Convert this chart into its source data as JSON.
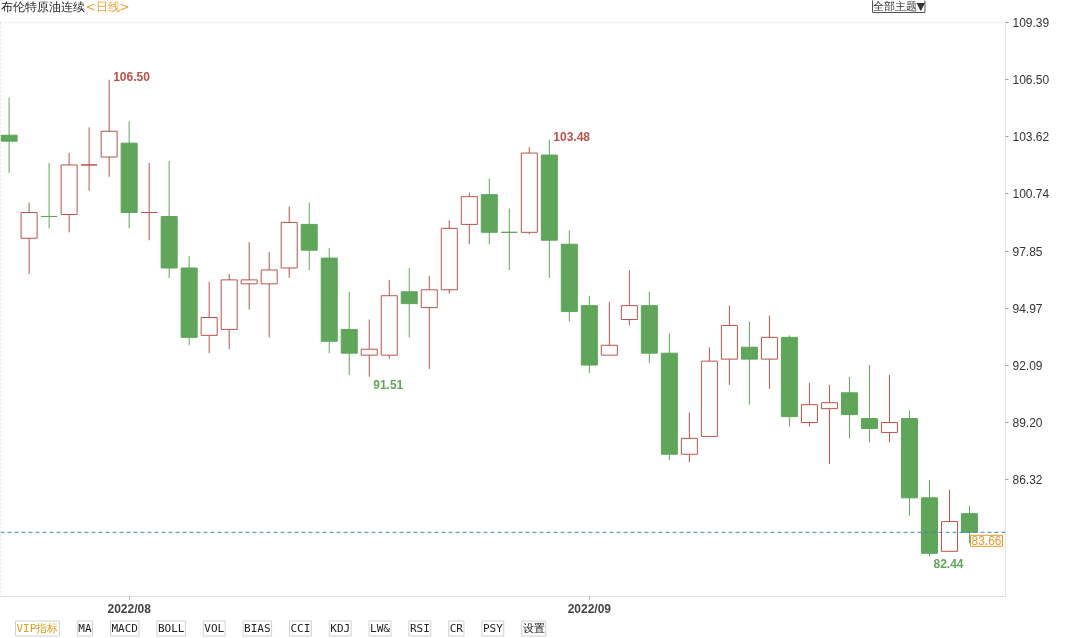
{
  "chart_data": {
    "type": "candlestick",
    "title": "布伦特原油连续",
    "subtitle": "<日线>",
    "categories": [
      null,
      null,
      null,
      null,
      null,
      null,
      "2022/08",
      null,
      null,
      null,
      null,
      null,
      null,
      null,
      null,
      null,
      null,
      null,
      null,
      null,
      null,
      null,
      null,
      null,
      null,
      null,
      null,
      null,
      null,
      "2022/09",
      null,
      null,
      null,
      null,
      null,
      null,
      null,
      null,
      null,
      null,
      null,
      null,
      null,
      null,
      null,
      null,
      null,
      null,
      null
    ],
    "ohlc": [
      [
        103.7,
        105.6,
        101.8,
        103.4
      ],
      [
        98.5,
        100.3,
        96.7,
        99.8
      ],
      [
        99.6,
        102.3,
        99.0,
        99.6
      ],
      [
        99.7,
        102.8,
        98.8,
        102.2
      ],
      [
        102.2,
        104.1,
        100.9,
        102.2
      ],
      [
        102.6,
        106.5,
        101.6,
        103.9
      ],
      [
        103.3,
        104.4,
        99.0,
        99.8
      ],
      [
        99.8,
        102.3,
        98.4,
        99.8
      ],
      [
        99.6,
        102.4,
        96.5,
        97.0
      ],
      [
        97.0,
        97.6,
        93.1,
        93.5
      ],
      [
        93.6,
        96.3,
        92.7,
        94.5
      ],
      [
        93.9,
        96.7,
        92.9,
        96.4
      ],
      [
        96.2,
        98.3,
        94.9,
        96.4
      ],
      [
        96.2,
        97.8,
        93.5,
        96.9
      ],
      [
        97.0,
        100.1,
        96.5,
        99.3
      ],
      [
        99.2,
        100.3,
        96.9,
        97.9
      ],
      [
        97.5,
        98.0,
        92.7,
        93.3
      ],
      [
        93.9,
        95.8,
        91.6,
        92.7
      ],
      [
        92.6,
        94.4,
        91.51,
        92.9
      ],
      [
        92.6,
        96.4,
        92.4,
        95.6
      ],
      [
        95.8,
        97.0,
        93.5,
        95.2
      ],
      [
        95.0,
        96.6,
        91.9,
        95.9
      ],
      [
        95.9,
        99.4,
        95.7,
        99.0
      ],
      [
        99.2,
        100.8,
        98.2,
        100.6
      ],
      [
        100.7,
        101.5,
        98.2,
        98.8
      ],
      [
        98.8,
        100.0,
        96.9,
        98.8
      ],
      [
        98.8,
        103.1,
        98.7,
        102.8
      ],
      [
        102.7,
        103.48,
        96.5,
        98.4
      ],
      [
        98.2,
        98.9,
        94.3,
        94.8
      ],
      [
        95.1,
        95.6,
        91.7,
        92.1
      ],
      [
        92.6,
        95.3,
        92.6,
        93.1
      ],
      [
        94.4,
        96.9,
        94.1,
        95.1
      ],
      [
        95.1,
        95.8,
        92.2,
        92.7
      ],
      [
        92.7,
        93.7,
        87.3,
        87.6
      ],
      [
        87.6,
        89.7,
        87.2,
        88.4
      ],
      [
        88.5,
        93.0,
        88.5,
        92.3
      ],
      [
        92.4,
        95.1,
        91.1,
        94.1
      ],
      [
        93.0,
        94.3,
        90.1,
        92.4
      ],
      [
        92.4,
        94.6,
        90.9,
        93.5
      ],
      [
        93.5,
        93.6,
        89.0,
        89.5
      ],
      [
        89.2,
        91.2,
        89.0,
        90.1
      ],
      [
        89.9,
        91.1,
        87.1,
        90.2
      ],
      [
        90.7,
        91.5,
        88.4,
        89.6
      ],
      [
        89.4,
        92.1,
        88.2,
        88.9
      ],
      [
        88.7,
        91.6,
        88.2,
        89.2
      ],
      [
        89.4,
        89.8,
        84.5,
        85.4
      ],
      [
        85.4,
        86.3,
        82.44,
        82.6
      ],
      [
        82.7,
        85.8,
        82.7,
        84.2
      ],
      [
        84.6,
        85.0,
        83.1,
        83.66
      ]
    ],
    "value_labels": [
      null,
      null,
      null,
      null,
      null,
      [
        null,
        "106.50",
        null,
        null
      ],
      null,
      null,
      null,
      null,
      null,
      null,
      null,
      null,
      null,
      null,
      null,
      null,
      [
        null,
        null,
        "91.51",
        null
      ],
      null,
      null,
      null,
      null,
      null,
      null,
      null,
      null,
      [
        null,
        "103.48",
        null,
        null
      ],
      null,
      null,
      null,
      null,
      null,
      null,
      null,
      null,
      null,
      null,
      null,
      null,
      null,
      null,
      null,
      null,
      null,
      null,
      [
        null,
        null,
        "82.44",
        null
      ],
      null,
      null
    ],
    "colors": [
      "#5fa55a",
      "#b9534a",
      "#5fa55a",
      "#b9534a",
      "#b9534a",
      "#b9534a",
      "#5fa55a",
      "#b9534a",
      "#5fa55a",
      "#5fa55a",
      "#b9534a",
      "#b9534a",
      "#b9534a",
      "#b9534a",
      "#b9534a",
      "#5fa55a",
      "#5fa55a",
      "#5fa55a",
      "#b9534a",
      "#b9534a",
      "#5fa55a",
      "#b9534a",
      "#b9534a",
      "#b9534a",
      "#5fa55a",
      "#5fa55a",
      "#b9534a",
      "#5fa55a",
      "#5fa55a",
      "#5fa55a",
      "#b9534a",
      "#b9534a",
      "#5fa55a",
      "#5fa55a",
      "#b9534a",
      "#b9534a",
      "#b9534a",
      "#5fa55a",
      "#b9534a",
      "#5fa55a",
      "#b9534a",
      "#b9534a",
      "#5fa55a",
      "#5fa55a",
      "#b9534a",
      "#5fa55a",
      "#5fa55a",
      "#b9534a",
      "#5fa55a"
    ],
    "ylim": [
      80.42,
      109.39
    ],
    "yticks": [
      109.39,
      {
        "value": 106.5,
        "label": "106.50"
      },
      103.62,
      100.74,
      97.85,
      94.97,
      92.09,
      {
        "value": 89.2,
        "label": "89.20"
      },
      86.32
    ],
    "ref_lines": [
      {
        "axis": "y",
        "value": 83.66,
        "label": "83.66",
        "color": "#3b82b6",
        "line_style": "dashed"
      }
    ],
    "annotations": [
      "全部主题▼",
      "VIP指标",
      "MA",
      "MACD",
      "BOLL",
      "VOL",
      "BIAS",
      "CCI",
      "KDJ",
      "LW&",
      "RSI",
      "CR",
      "PSY",
      "设置"
    ]
  }
}
